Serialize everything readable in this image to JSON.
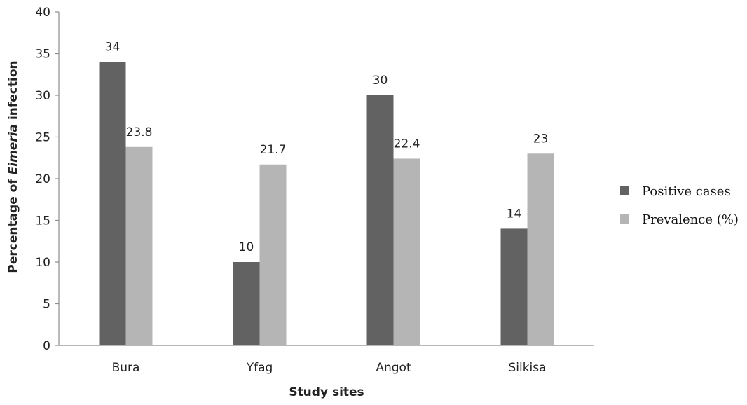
{
  "chart_data": {
    "type": "bar",
    "categories": [
      "Bura",
      "Yfag",
      "Angot",
      "Silkisa"
    ],
    "series": [
      {
        "name": "Positive cases",
        "values": [
          34,
          10,
          30,
          14
        ],
        "labels": [
          "34",
          "10",
          "30",
          "14"
        ],
        "color": "#626262"
      },
      {
        "name": "Prevalence (%)",
        "values": [
          23.8,
          21.7,
          22.4,
          23
        ],
        "labels": [
          "23.8",
          "21.7",
          "22.4",
          "23"
        ],
        "color": "#b5b5b5"
      }
    ],
    "title": "",
    "xlabel": "Study sites",
    "ylabel_parts": [
      "Percentage of ",
      "Eimeria",
      " infection"
    ],
    "ylim": [
      0,
      40
    ],
    "yticks": [
      0,
      5,
      10,
      15,
      20,
      25,
      30,
      35,
      40
    ],
    "grid": false,
    "legend_position": "right"
  }
}
